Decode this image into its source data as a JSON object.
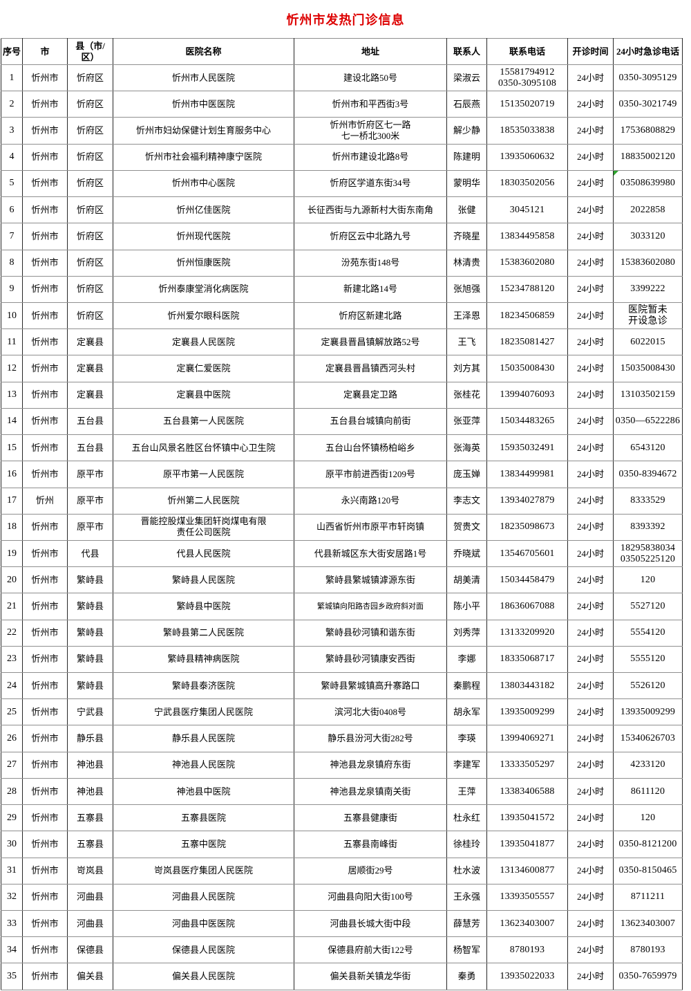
{
  "title": "忻州市发热门诊信息",
  "colors": {
    "title": "#dd0000",
    "error_marker": "#2fa52f",
    "border_dark": "#262626",
    "border_light": "#8f8f8f"
  },
  "table": {
    "columns": [
      {
        "key": "no",
        "label": "序号"
      },
      {
        "key": "city",
        "label": "县（市/区）",
        "label_note": ""
      },
      {
        "key": "county",
        "label": ""
      },
      {
        "key": "hospital",
        "label": "医院名称"
      },
      {
        "key": "address",
        "label": "地址"
      },
      {
        "key": "contact",
        "label": "联系人"
      },
      {
        "key": "phone",
        "label": "联系电话"
      },
      {
        "key": "hours",
        "label": "开诊时间"
      },
      {
        "key": "emergency",
        "label": "24小时急诊电话"
      }
    ],
    "headers": {
      "no": "序号",
      "city": "市",
      "county": "县（市/区）",
      "hospital": "医院名称",
      "address": "地址",
      "contact": "联系人",
      "phone": "联系电话",
      "hours": "开诊时间",
      "emergency": "24小时急诊电话"
    },
    "rows": [
      {
        "no": "1",
        "city": "忻州市",
        "county": "忻府区",
        "hospital": "忻州市人民医院",
        "address": "建设北路50号",
        "contact": "梁淑云",
        "phone": "15581794912\n0350-3095108",
        "hours": "24小时",
        "emergency": "0350-3095129"
      },
      {
        "no": "2",
        "city": "忻州市",
        "county": "忻府区",
        "hospital": "忻州市中医医院",
        "address": "忻州市和平西街3号",
        "contact": "石辰燕",
        "phone": "15135020719",
        "hours": "24小时",
        "emergency": "0350-3021749"
      },
      {
        "no": "3",
        "city": "忻州市",
        "county": "忻府区",
        "hospital": "忻州市妇幼保健计划生育服务中心",
        "address": "忻州市忻府区七一路\n七一桥北300米",
        "contact": "解少静",
        "phone": "18535033838",
        "hours": "24小时",
        "emergency": "17536808829"
      },
      {
        "no": "4",
        "city": "忻州市",
        "county": "忻府区",
        "hospital": "忻州市社会福利精神康宁医院",
        "address": "忻州市建设北路8号",
        "contact": "陈建明",
        "phone": "13935060632",
        "hours": "24小时",
        "emergency": "18835002120"
      },
      {
        "no": "5",
        "city": "忻州市",
        "county": "忻府区",
        "hospital": "忻州市中心医院",
        "address": "忻府区学道东街34号",
        "contact": "蒙明华",
        "phone": "18303502056",
        "hours": "24小时",
        "emergency": "03508639980",
        "emergency_marker": true
      },
      {
        "no": "6",
        "city": "忻州市",
        "county": "忻府区",
        "hospital": "忻州亿佳医院",
        "address": "长征西街与九源新村大街东南角",
        "contact": "张健",
        "phone": "3045121",
        "hours": "24小时",
        "emergency": "2022858"
      },
      {
        "no": "7",
        "city": "忻州市",
        "county": "忻府区",
        "hospital": "忻州现代医院",
        "address": "忻府区云中北路九号",
        "contact": "齐晓星",
        "phone": "13834495858",
        "hours": "24小时",
        "emergency": "3033120"
      },
      {
        "no": "8",
        "city": "忻州市",
        "county": "忻府区",
        "hospital": "忻州恒康医院",
        "address": "汾苑东街148号",
        "contact": "林清贵",
        "phone": "15383602080",
        "hours": "24小时",
        "emergency": "15383602080"
      },
      {
        "no": "9",
        "city": "忻州市",
        "county": "忻府区",
        "hospital": "忻州泰康堂消化病医院",
        "address": "新建北路14号",
        "contact": "张旭强",
        "phone": "15234788120",
        "hours": "24小时",
        "emergency": "3399222"
      },
      {
        "no": "10",
        "city": "忻州市",
        "county": "忻府区",
        "hospital": "忻州爱尔眼科医院",
        "address": "忻府区新建北路",
        "contact": "王泽恩",
        "phone": "18234506859",
        "hours": "24小时",
        "emergency": "医院暂未\n开设急诊"
      },
      {
        "no": "11",
        "city": "忻州市",
        "county": "定襄县",
        "hospital": "定襄县人民医院",
        "address": "定襄县晋昌镇解放路52号",
        "contact": "王飞",
        "phone": "18235081427",
        "hours": "24小时",
        "emergency": "6022015"
      },
      {
        "no": "12",
        "city": "忻州市",
        "county": "定襄县",
        "hospital": "定襄仁爱医院",
        "address": "定襄县晋昌镇西河头村",
        "contact": "刘方其",
        "phone": "15035008430",
        "hours": "24小时",
        "emergency": "15035008430"
      },
      {
        "no": "13",
        "city": "忻州市",
        "county": "定襄县",
        "hospital": "定襄县中医院",
        "address": "定襄县定卫路",
        "contact": "张桂花",
        "phone": "13994076093",
        "hours": "24小时",
        "emergency": "13103502159"
      },
      {
        "no": "14",
        "city": "忻州市",
        "county": "五台县",
        "hospital": "五台县第一人民医院",
        "address": "五台县台城镇向前街",
        "contact": "张亚萍",
        "phone": "15034483265",
        "hours": "24小时",
        "emergency": "0350—6522286"
      },
      {
        "no": "15",
        "city": "忻州市",
        "county": "五台县",
        "hospital": "五台山风景名胜区台怀镇中心卫生院",
        "address": "五台山台怀镇杨柏峪乡",
        "contact": "张海英",
        "phone": "15935032491",
        "hours": "24小时",
        "emergency": "6543120"
      },
      {
        "no": "16",
        "city": "忻州市",
        "county": "原平市",
        "hospital": "原平市第一人民医院",
        "address": "原平市前进西街1209号",
        "contact": "庞玉婵",
        "phone": "13834499981",
        "hours": "24小时",
        "emergency": "0350-8394672"
      },
      {
        "no": "17",
        "city": "忻州",
        "county": "原平市",
        "hospital": "忻州第二人民医院",
        "address": "永兴南路120号",
        "contact": "李志文",
        "phone": "13934027879",
        "hours": "24小时",
        "emergency": "8333529"
      },
      {
        "no": "18",
        "city": "忻州市",
        "county": "原平市",
        "hospital": "晋能控股煤业集团轩岗煤电有限\n责任公司医院",
        "address": "山西省忻州市原平市轩岗镇",
        "contact": "贺贵文",
        "phone": "18235098673",
        "hours": "24小时",
        "emergency": "8393392"
      },
      {
        "no": "19",
        "city": "忻州市",
        "county": "代县",
        "hospital": "代县人民医院",
        "address": "代县新城区东大街安居路1号",
        "contact": "乔晓斌",
        "phone": "13546705601",
        "hours": "24小时",
        "emergency": "18295838034\n03505225120"
      },
      {
        "no": "20",
        "city": "忻州市",
        "county": "繁峙县",
        "hospital": "繁峙县人民医院",
        "address": "繁峙县繁城镇滹源东街",
        "contact": "胡美清",
        "phone": "15034458479",
        "hours": "24小时",
        "emergency": "120"
      },
      {
        "no": "21",
        "city": "忻州市",
        "county": "繁峙县",
        "hospital": "繁峙县中医院",
        "address": "繁城镇向阳路杏园乡政府斜对面",
        "contact": "陈小平",
        "phone": "18636067088",
        "hours": "24小时",
        "emergency": "5527120",
        "address_small": true
      },
      {
        "no": "22",
        "city": "忻州市",
        "county": "繁峙县",
        "hospital": "繁峙县第二人民医院",
        "address": "繁峙县砂河镇和谐东街",
        "contact": "刘秀萍",
        "phone": "13133209920",
        "hours": "24小时",
        "emergency": "5554120"
      },
      {
        "no": "23",
        "city": "忻州市",
        "county": "繁峙县",
        "hospital": "繁峙县精神病医院",
        "address": "繁峙县砂河镇康安西街",
        "contact": "李娜",
        "phone": "18335068717",
        "hours": "24小时",
        "emergency": "5555120"
      },
      {
        "no": "24",
        "city": "忻州市",
        "county": "繁峙县",
        "hospital": "繁峙县泰济医院",
        "address": "繁峙县繁城镇高升寨路口",
        "contact": "秦鹏程",
        "phone": "13803443182",
        "hours": "24小时",
        "emergency": "5526120"
      },
      {
        "no": "25",
        "city": "忻州市",
        "county": "宁武县",
        "hospital": "宁武县医疗集团人民医院",
        "address": "滨河北大街0408号",
        "contact": "胡永军",
        "phone": "13935009299",
        "hours": "24小时",
        "emergency": "13935009299"
      },
      {
        "no": "26",
        "city": "忻州市",
        "county": "静乐县",
        "hospital": "静乐县人民医院",
        "address": "静乐县汾河大街282号",
        "contact": "李瑛",
        "phone": "13994069271",
        "hours": "24小时",
        "emergency": "15340626703"
      },
      {
        "no": "27",
        "city": "忻州市",
        "county": "神池县",
        "hospital": "神池县人民医院",
        "address": "神池县龙泉镇府东街",
        "contact": "李建军",
        "phone": "13333505297",
        "hours": "24小时",
        "emergency": "4233120"
      },
      {
        "no": "28",
        "city": "忻州市",
        "county": "神池县",
        "hospital": "神池县中医院",
        "address": "神池县龙泉镇南关街",
        "contact": "王萍",
        "phone": "13383406588",
        "hours": "24小时",
        "emergency": "8611120"
      },
      {
        "no": "29",
        "city": "忻州市",
        "county": "五寨县",
        "hospital": "五寨县医院",
        "address": "五寨县健康街",
        "contact": "杜永红",
        "phone": "13935041572",
        "hours": "24小时",
        "emergency": "120"
      },
      {
        "no": "30",
        "city": "忻州市",
        "county": "五寨县",
        "hospital": "五寨中医院",
        "address": "五寨县南峰街",
        "contact": "徐桂玲",
        "phone": "13935041877",
        "hours": "24小时",
        "emergency": "0350-8121200"
      },
      {
        "no": "31",
        "city": "忻州市",
        "county": "岢岚县",
        "hospital": "岢岚县医疗集团人民医院",
        "address": "居顺街29号",
        "contact": "杜水波",
        "phone": "13134600877",
        "hours": "24小时",
        "emergency": "0350-8150465"
      },
      {
        "no": "32",
        "city": "忻州市",
        "county": "河曲县",
        "hospital": "河曲县人民医院",
        "address": "河曲县向阳大街100号",
        "contact": "王永强",
        "phone": "13393505557",
        "hours": "24小时",
        "emergency": "8711211"
      },
      {
        "no": "33",
        "city": "忻州市",
        "county": "河曲县",
        "hospital": "河曲县中医医院",
        "address": "河曲县长城大街中段",
        "contact": "薛慧芳",
        "phone": "13623403007",
        "hours": "24小时",
        "emergency": "13623403007"
      },
      {
        "no": "34",
        "city": "忻州市",
        "county": "保德县",
        "hospital": "保德县人民医院",
        "address": "保德县府前大街122号",
        "contact": "杨智军",
        "phone": "8780193",
        "hours": "24小时",
        "emergency": "8780193"
      },
      {
        "no": "35",
        "city": "忻州市",
        "county": "偏关县",
        "hospital": "偏关县人民医院",
        "address": "偏关县新关镇龙华街",
        "contact": "秦勇",
        "phone": "13935022033",
        "hours": "24小时",
        "emergency": "0350-7659979"
      }
    ]
  }
}
